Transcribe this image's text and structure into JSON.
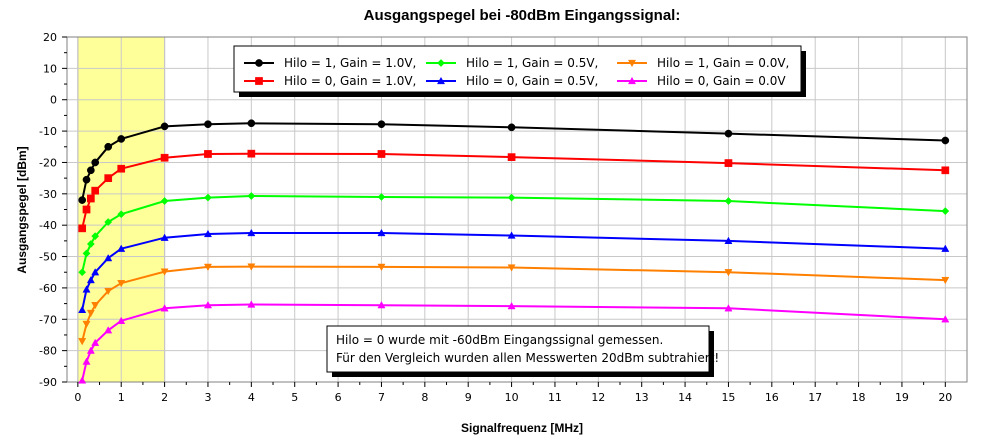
{
  "chart_data": {
    "type": "line",
    "title": "Ausgangspegel bei -80dBm Eingangssignal:",
    "xlabel": "Signalfrequenz [MHz]",
    "ylabel": "Ausgangspegel [dBm]",
    "xlim": [
      -0.25,
      20.5
    ],
    "ylim": [
      -90,
      20
    ],
    "xticks": [
      "0",
      "1",
      "2",
      "3",
      "4",
      "5",
      "6",
      "7",
      "8",
      "9",
      "10",
      "11",
      "12",
      "13",
      "14",
      "15",
      "16",
      "17",
      "18",
      "19",
      "20"
    ],
    "yticks": [
      "20",
      "10",
      "0",
      "-10",
      "-20",
      "-30",
      "-40",
      "-50",
      "-60",
      "-70",
      "-80",
      "-90"
    ],
    "grid": true,
    "legend_position": "top-right",
    "highlight_region": {
      "x_from": 0,
      "x_to": 2,
      "color": "#ffff99"
    },
    "note": [
      "Hilo = 0 wurde mit -60dBm Eingangssignal gemessen.",
      "Für den Vergleich wurden allen Messwerten 20dBm subtrahiert!"
    ],
    "x": [
      0.1,
      0.2,
      0.3,
      0.4,
      0.7,
      1,
      2,
      3,
      4,
      7,
      10,
      15,
      20
    ],
    "series": [
      {
        "name": "Hilo = 1, Gain = 1.0V,",
        "color": "#000000",
        "marker": "circle",
        "values": [
          -32,
          -25.5,
          -22.5,
          -20,
          -15,
          -12.5,
          -8.5,
          -7.8,
          -7.5,
          -7.8,
          -8.8,
          -10.8,
          -13
        ]
      },
      {
        "name": "Hilo = 0, Gain = 1.0V,",
        "color": "#ff0000",
        "marker": "square",
        "values": [
          -41,
          -35,
          -31.5,
          -29,
          -25,
          -22,
          -18.5,
          -17.3,
          -17.2,
          -17.3,
          -18.3,
          -20.2,
          -22.5
        ]
      },
      {
        "name": "Hilo = 1, Gain = 0.5V,",
        "color": "#00ff00",
        "marker": "diamond",
        "values": [
          -55,
          -49,
          -46,
          -43.5,
          -39,
          -36.5,
          -32.3,
          -31.2,
          -30.7,
          -31,
          -31.2,
          -32.3,
          -35.5
        ]
      },
      {
        "name": "Hilo = 0, Gain = 0.5V,",
        "color": "#0000ff",
        "marker": "triangle",
        "values": [
          -67,
          -60.5,
          -57.5,
          -55,
          -50.5,
          -47.5,
          -44,
          -42.8,
          -42.5,
          -42.5,
          -43.3,
          -45,
          -47.5
        ]
      },
      {
        "name": "Hilo = 1, Gain = 0.0V,",
        "color": "#ff8000",
        "marker": "triangle-down",
        "values": [
          -77,
          -71.5,
          -68,
          -65.5,
          -61,
          -58.5,
          -54.8,
          -53.3,
          -53.2,
          -53.3,
          -53.5,
          -55,
          -57.5
        ]
      },
      {
        "name": "Hilo = 0, Gain = 0.0V",
        "color": "#ff00ff",
        "marker": "triangle",
        "values": [
          -89.5,
          -83.5,
          -80,
          -77.5,
          -73.5,
          -70.5,
          -66.5,
          -65.5,
          -65.3,
          -65.5,
          -65.8,
          -66.5,
          -70
        ]
      }
    ]
  }
}
